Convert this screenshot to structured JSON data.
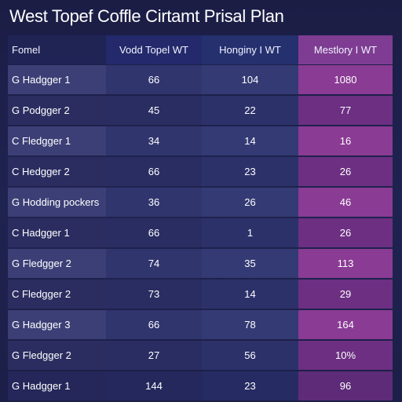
{
  "title": "West Topef Coffle Cirtamt Prisal Plan",
  "table": {
    "headers": [
      "Fomel",
      "Vodd Topel WT",
      "Honginy I WT",
      "Mestlory I WT"
    ],
    "rows": [
      [
        "G Hadgger 1",
        "66",
        "104",
        "1080"
      ],
      [
        "G Podgger 2",
        "45",
        "22",
        "77"
      ],
      [
        "C Fledgger 1",
        "34",
        "14",
        "16"
      ],
      [
        "C Hedgger 2",
        "66",
        "23",
        "26"
      ],
      [
        "G Hodding pockers",
        "36",
        "26",
        "46"
      ],
      [
        "C Hadgger 1",
        "66",
        "1",
        "26"
      ],
      [
        "G Fledgger 2",
        "74",
        "35",
        "113"
      ],
      [
        "C Fledgger 2",
        "73",
        "14",
        "29"
      ],
      [
        "G Hadgger 3",
        "66",
        "78",
        "164"
      ],
      [
        "G Fledgger 2",
        "27",
        "56",
        "10%"
      ],
      [
        "G Hadgger 1",
        "144",
        "23",
        "96"
      ]
    ]
  }
}
